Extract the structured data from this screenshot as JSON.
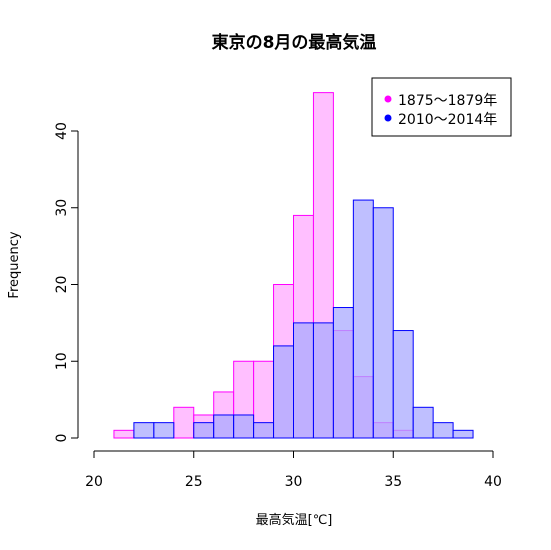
{
  "chart_data": {
    "type": "bar",
    "title": "東京の8月の最高気温",
    "xlabel": "最高気温[℃]",
    "ylabel": "Frequency",
    "xlim": [
      20,
      40
    ],
    "ylim": [
      0,
      45
    ],
    "x_ticks": [
      "20",
      "25",
      "30",
      "35",
      "40"
    ],
    "y_ticks": [
      "0",
      "10",
      "20",
      "30",
      "40"
    ],
    "bin_edges": [
      20,
      21,
      22,
      23,
      24,
      25,
      26,
      27,
      28,
      29,
      30,
      31,
      32,
      33,
      34,
      35,
      36,
      37,
      38,
      39,
      40
    ],
    "legend_position": "top-right",
    "series": [
      {
        "name": "1875～1879年",
        "color": "#ff00ff",
        "fill": "#ffaaff",
        "values": [
          0,
          1,
          0,
          0,
          4,
          3,
          6,
          10,
          10,
          20,
          29,
          45,
          14,
          8,
          2,
          1,
          0,
          0,
          0,
          0
        ]
      },
      {
        "name": "2010～2014年",
        "color": "#0000ff",
        "fill": "#aaaaff",
        "values": [
          0,
          0,
          2,
          2,
          0,
          2,
          3,
          3,
          2,
          12,
          15,
          15,
          17,
          31,
          30,
          14,
          4,
          2,
          1,
          0
        ]
      }
    ]
  }
}
